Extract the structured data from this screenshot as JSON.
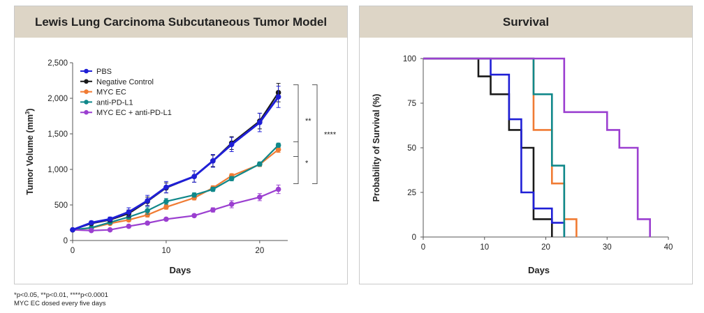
{
  "footnote": {
    "line1": "*p<0.05, **p<0.01, ****p<0.0001",
    "line2": "MYC EC dosed every five days"
  },
  "chart_data": [
    {
      "type": "line",
      "title": "Lewis Lung Carcinoma Subcutaneous Tumor Model",
      "xlabel": "Days",
      "ylabel_main": "Tumor Volume (mm",
      "ylabel_sup": "3",
      "ylabel_end": ")",
      "xlim": [
        0,
        23
      ],
      "ylim": [
        0,
        2500
      ],
      "xticks": [
        0,
        10,
        20
      ],
      "xtick_labels": [
        "0",
        "10",
        "20"
      ],
      "yticks": [
        0,
        500,
        1000,
        1500,
        2000,
        2500
      ],
      "ytick_labels": [
        "0",
        "500",
        "1,000",
        "1,500",
        "2,000",
        "2,500"
      ],
      "x": [
        0,
        2,
        4,
        6,
        8,
        10,
        13,
        15,
        17,
        20,
        22
      ],
      "series": [
        {
          "name": "PBS",
          "color": "#1f1fd6",
          "values": [
            150,
            250,
            300,
            400,
            560,
            750,
            900,
            1120,
            1350,
            1660,
            2020
          ],
          "errors": [
            15,
            25,
            30,
            60,
            75,
            80,
            80,
            90,
            100,
            130,
            150
          ]
        },
        {
          "name": "Negative Control",
          "color": "#1a1a1a",
          "values": [
            150,
            240,
            290,
            380,
            550,
            740,
            900,
            1120,
            1370,
            1680,
            2080
          ],
          "errors": [
            15,
            25,
            30,
            50,
            60,
            70,
            80,
            80,
            90,
            110,
            130
          ]
        },
        {
          "name": "MYC EC",
          "color": "#f07b33",
          "values": [
            150,
            175,
            240,
            290,
            360,
            470,
            600,
            740,
            910,
            1070,
            1280
          ],
          "errors": [
            10,
            15,
            20,
            25,
            30,
            30,
            30,
            30,
            30,
            30,
            40
          ]
        },
        {
          "name": "anti-PD-L1",
          "color": "#10888a",
          "values": [
            150,
            180,
            255,
            330,
            420,
            550,
            640,
            720,
            870,
            1075,
            1340
          ],
          "errors": [
            10,
            15,
            25,
            30,
            50,
            40,
            30,
            30,
            30,
            30,
            30
          ]
        },
        {
          "name": "MYC EC + anti-PD-L1",
          "color": "#9b3fd0",
          "values": [
            150,
            140,
            150,
            200,
            245,
            300,
            350,
            430,
            510,
            610,
            720
          ],
          "errors": [
            10,
            10,
            15,
            20,
            20,
            20,
            20,
            30,
            50,
            50,
            60
          ]
        }
      ],
      "significance": [
        {
          "label": "**",
          "between": [
            "PBS",
            "MYC EC"
          ]
        },
        {
          "label": "*",
          "between": [
            "MYC EC",
            "MYC EC + anti-PD-L1"
          ]
        },
        {
          "label": "****",
          "between": [
            "PBS",
            "MYC EC + anti-PD-L1"
          ]
        }
      ]
    },
    {
      "type": "step",
      "title": "Survival",
      "xlabel": "Days",
      "ylabel": "Probability of Survival (%)",
      "xlim": [
        0,
        40
      ],
      "ylim": [
        0,
        100
      ],
      "xticks": [
        0,
        10,
        20,
        30,
        40
      ],
      "xtick_labels": [
        "0",
        "10",
        "20",
        "30",
        "40"
      ],
      "yticks": [
        0,
        25,
        50,
        75,
        100
      ],
      "ytick_labels": [
        "0",
        "25",
        "50",
        "75",
        "100"
      ],
      "series": [
        {
          "name": "Negative Control",
          "color": "#1a1a1a",
          "x": [
            0,
            9,
            11,
            14,
            16,
            18,
            21
          ],
          "y": [
            100,
            90,
            80,
            60,
            50,
            10,
            0
          ]
        },
        {
          "name": "PBS",
          "color": "#1f1fd6",
          "x": [
            0,
            11,
            14,
            16,
            18,
            21,
            23
          ],
          "y": [
            100,
            91,
            66,
            25,
            16,
            8,
            0
          ]
        },
        {
          "name": "MYC EC",
          "color": "#f07b33",
          "x": [
            0,
            18,
            21,
            23,
            25
          ],
          "y": [
            100,
            60,
            30,
            10,
            0
          ]
        },
        {
          "name": "anti-PD-L1",
          "color": "#10888a",
          "x": [
            0,
            18,
            21,
            23
          ],
          "y": [
            100,
            80,
            40,
            0
          ]
        },
        {
          "name": "MYC EC + anti-PD-L1",
          "color": "#9b3fd0",
          "x": [
            0,
            23,
            30,
            32,
            35,
            37
          ],
          "y": [
            100,
            70,
            60,
            50,
            10,
            0
          ]
        }
      ]
    }
  ]
}
